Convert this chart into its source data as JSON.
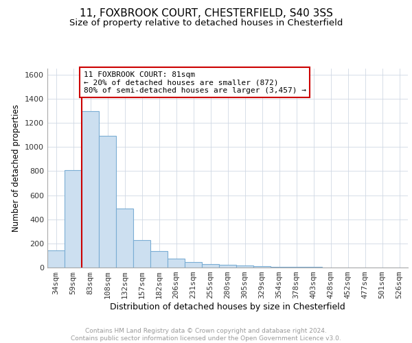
{
  "title": "11, FOXBROOK COURT, CHESTERFIELD, S40 3SS",
  "subtitle": "Size of property relative to detached houses in Chesterfield",
  "xlabel": "Distribution of detached houses by size in Chesterfield",
  "ylabel": "Number of detached properties",
  "bin_labels": [
    "34sqm",
    "59sqm",
    "83sqm",
    "108sqm",
    "132sqm",
    "157sqm",
    "182sqm",
    "206sqm",
    "231sqm",
    "255sqm",
    "280sqm",
    "305sqm",
    "329sqm",
    "354sqm",
    "378sqm",
    "403sqm",
    "428sqm",
    "452sqm",
    "477sqm",
    "501sqm",
    "526sqm"
  ],
  "bar_values": [
    140,
    810,
    1300,
    1090,
    490,
    230,
    135,
    75,
    45,
    30,
    20,
    15,
    10,
    6,
    4,
    3,
    2,
    1,
    1,
    1,
    1
  ],
  "bar_color": "#ccdff0",
  "bar_edge_color": "#7aadd4",
  "property_line_color": "#cc0000",
  "annotation_line1": "11 FOXBROOK COURT: 81sqm",
  "annotation_line2": "← 20% of detached houses are smaller (872)",
  "annotation_line3": "80% of semi-detached houses are larger (3,457) →",
  "annotation_box_color": "#cc0000",
  "ylim": [
    0,
    1650
  ],
  "yticks": [
    0,
    200,
    400,
    600,
    800,
    1000,
    1200,
    1400,
    1600
  ],
  "footer_text": "Contains HM Land Registry data © Crown copyright and database right 2024.\nContains public sector information licensed under the Open Government Licence v3.0.",
  "bg_color": "#ffffff",
  "grid_color": "#d0d8e4",
  "title_fontsize": 11,
  "subtitle_fontsize": 9.5,
  "xlabel_fontsize": 9,
  "ylabel_fontsize": 8.5,
  "tick_fontsize": 8,
  "footer_fontsize": 6.5,
  "footer_color": "#999999"
}
